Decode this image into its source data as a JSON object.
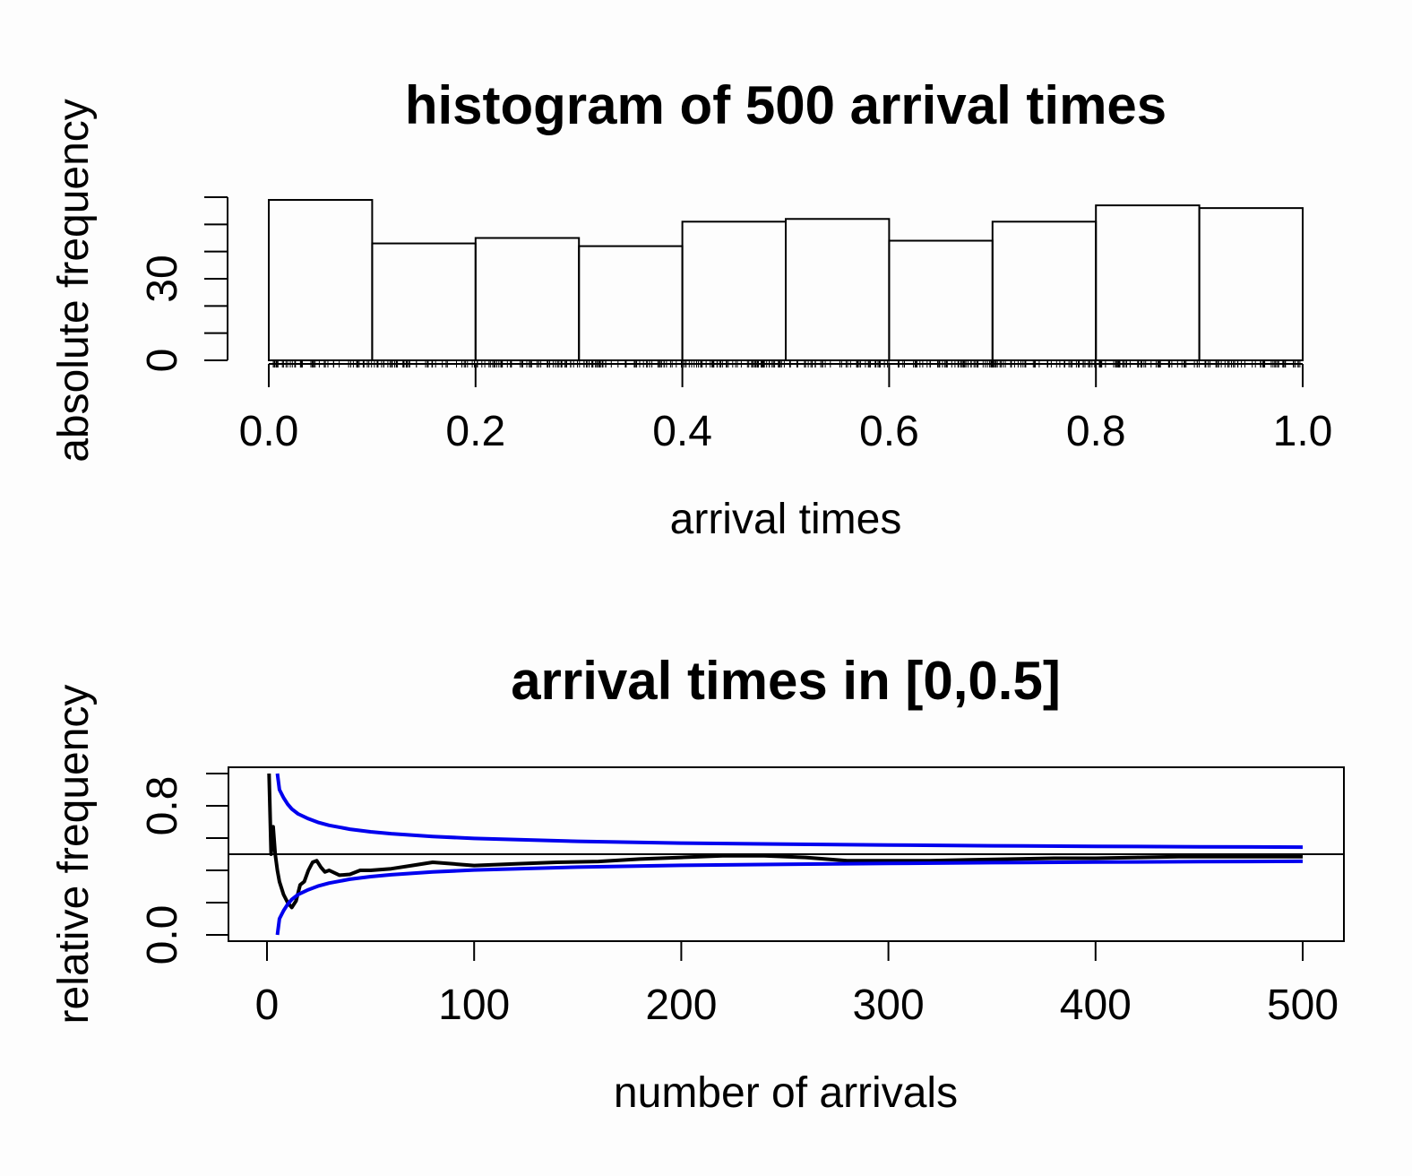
{
  "chart_data": [
    {
      "type": "bar",
      "title": "histogram of 500 arrival times",
      "xlabel": "arrival times",
      "ylabel": "absolute frequency",
      "bins": [
        [
          0.0,
          0.1
        ],
        [
          0.1,
          0.2
        ],
        [
          0.2,
          0.3
        ],
        [
          0.3,
          0.4
        ],
        [
          0.4,
          0.5
        ],
        [
          0.5,
          0.6
        ],
        [
          0.6,
          0.7
        ],
        [
          0.7,
          0.8
        ],
        [
          0.8,
          0.9
        ],
        [
          0.9,
          1.0
        ]
      ],
      "values": [
        59,
        43,
        45,
        42,
        51,
        52,
        44,
        51,
        57,
        56
      ],
      "xlim": [
        0,
        1
      ],
      "ylim": [
        0,
        60
      ],
      "xticks": [
        0.0,
        0.2,
        0.4,
        0.6,
        0.8,
        1.0
      ],
      "xtick_labels": [
        "0.0",
        "0.2",
        "0.4",
        "0.6",
        "0.8",
        "1.0"
      ],
      "yticks": [
        0,
        10,
        20,
        30,
        40,
        50,
        60
      ],
      "ytick_labels": [
        "0",
        "",
        "",
        "30",
        "",
        "",
        ""
      ],
      "rug": true,
      "grid": false
    },
    {
      "type": "line",
      "title": "arrival times in [0,0.5]",
      "xlabel": "number of arrivals",
      "ylabel": "relative frequency",
      "xlim": [
        0,
        500
      ],
      "ylim": [
        0,
        1
      ],
      "xticks": [
        0,
        100,
        200,
        300,
        400,
        500
      ],
      "xtick_labels": [
        "0",
        "100",
        "200",
        "300",
        "400",
        "500"
      ],
      "yticks": [
        0.0,
        0.2,
        0.4,
        0.6,
        0.8,
        1.0
      ],
      "ytick_labels": [
        "0.0",
        "",
        "",
        "",
        "0.8",
        ""
      ],
      "hline": 0.5,
      "series": [
        {
          "color": "#000000",
          "x": [
            1,
            2,
            3,
            4,
            5,
            6,
            8,
            10,
            12,
            14,
            16,
            18,
            20,
            22,
            24,
            26,
            28,
            30,
            35,
            40,
            45,
            50,
            60,
            70,
            80,
            90,
            100,
            120,
            140,
            160,
            180,
            200,
            220,
            240,
            260,
            280,
            300,
            320,
            340,
            360,
            380,
            400,
            420,
            440,
            460,
            480,
            500
          ],
          "y": [
            1.0,
            0.5,
            0.67,
            0.5,
            0.4,
            0.33,
            0.25,
            0.2,
            0.17,
            0.21,
            0.31,
            0.33,
            0.4,
            0.45,
            0.46,
            0.42,
            0.39,
            0.4,
            0.37,
            0.375,
            0.4,
            0.4,
            0.41,
            0.43,
            0.45,
            0.44,
            0.43,
            0.44,
            0.45,
            0.455,
            0.47,
            0.48,
            0.49,
            0.49,
            0.48,
            0.46,
            0.46,
            0.46,
            0.465,
            0.47,
            0.475,
            0.475,
            0.48,
            0.485,
            0.485,
            0.485,
            0.485
          ]
        },
        {
          "color": "#0000ee",
          "x": [
            5,
            6,
            8,
            10,
            12,
            15,
            20,
            25,
            30,
            40,
            50,
            60,
            80,
            100,
            150,
            200,
            250,
            300,
            350,
            400,
            450,
            500
          ],
          "y": [
            1.0,
            0.9,
            0.85,
            0.81,
            0.78,
            0.75,
            0.72,
            0.696,
            0.679,
            0.655,
            0.639,
            0.627,
            0.61,
            0.598,
            0.58,
            0.569,
            0.562,
            0.557,
            0.552,
            0.549,
            0.546,
            0.544
          ]
        },
        {
          "color": "#0000ee",
          "x": [
            5,
            6,
            8,
            10,
            12,
            15,
            20,
            25,
            30,
            40,
            50,
            60,
            80,
            100,
            150,
            200,
            250,
            300,
            350,
            400,
            450,
            500
          ],
          "y": [
            0.0,
            0.1,
            0.15,
            0.19,
            0.22,
            0.25,
            0.28,
            0.304,
            0.321,
            0.345,
            0.361,
            0.373,
            0.39,
            0.402,
            0.42,
            0.431,
            0.438,
            0.443,
            0.448,
            0.451,
            0.454,
            0.456
          ]
        }
      ],
      "grid": false
    }
  ]
}
